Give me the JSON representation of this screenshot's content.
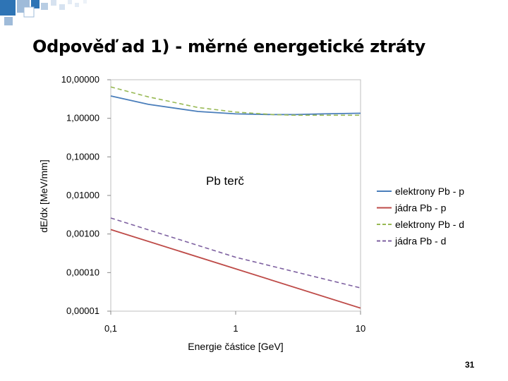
{
  "slide": {
    "title": "Odpověď ad 1) - měrné energetické ztráty",
    "page_number": "31"
  },
  "colors": {
    "deco_blue": "#2e74b5",
    "deco_light": "#b8cde3"
  },
  "chart_data": {
    "type": "line",
    "xlabel": "Energie částice [GeV]",
    "ylabel": "dE/dx [MeV/mm]",
    "x_scale": "log",
    "y_scale": "log",
    "xlim": [
      0.1,
      10
    ],
    "ylim": [
      1e-05,
      10
    ],
    "x_ticks": [
      {
        "value": 0.1,
        "label": "0,1"
      },
      {
        "value": 1,
        "label": "1"
      },
      {
        "value": 10,
        "label": "10"
      }
    ],
    "y_ticks": [
      {
        "value": 10,
        "label": "10,00000"
      },
      {
        "value": 1,
        "label": "1,00000"
      },
      {
        "value": 0.1,
        "label": "0,10000"
      },
      {
        "value": 0.01,
        "label": "0,01000"
      },
      {
        "value": 0.001,
        "label": "0,00100"
      },
      {
        "value": 0.0001,
        "label": "0,00010"
      },
      {
        "value": 1e-05,
        "label": "0,00001"
      }
    ],
    "grid": "horizontal dotted",
    "legend_position": "right",
    "annotation": "Pb terč",
    "series": [
      {
        "name": "elektrony Pb - p",
        "color": "#4a7ebb",
        "dash": "solid",
        "x": [
          0.1,
          0.2,
          0.5,
          1,
          2,
          3,
          5,
          10
        ],
        "y": [
          3.8,
          2.3,
          1.5,
          1.3,
          1.25,
          1.25,
          1.3,
          1.35
        ]
      },
      {
        "name": "jádra Pb - p",
        "color": "#be4b48",
        "dash": "solid",
        "x": [
          0.1,
          1,
          10
        ],
        "y": [
          0.0013,
          0.000125,
          1.2e-05
        ]
      },
      {
        "name": "elektrony Pb - d",
        "color": "#98b954",
        "dash": "dashed",
        "x": [
          0.1,
          0.2,
          0.5,
          1,
          2,
          3,
          5,
          10
        ],
        "y": [
          6.5,
          3.6,
          1.9,
          1.45,
          1.25,
          1.2,
          1.2,
          1.2
        ]
      },
      {
        "name": "jádra Pb - d",
        "color": "#7d60a0",
        "dash": "dashed",
        "x": [
          0.1,
          1,
          10
        ],
        "y": [
          0.0026,
          0.00025,
          4e-05
        ]
      }
    ]
  }
}
